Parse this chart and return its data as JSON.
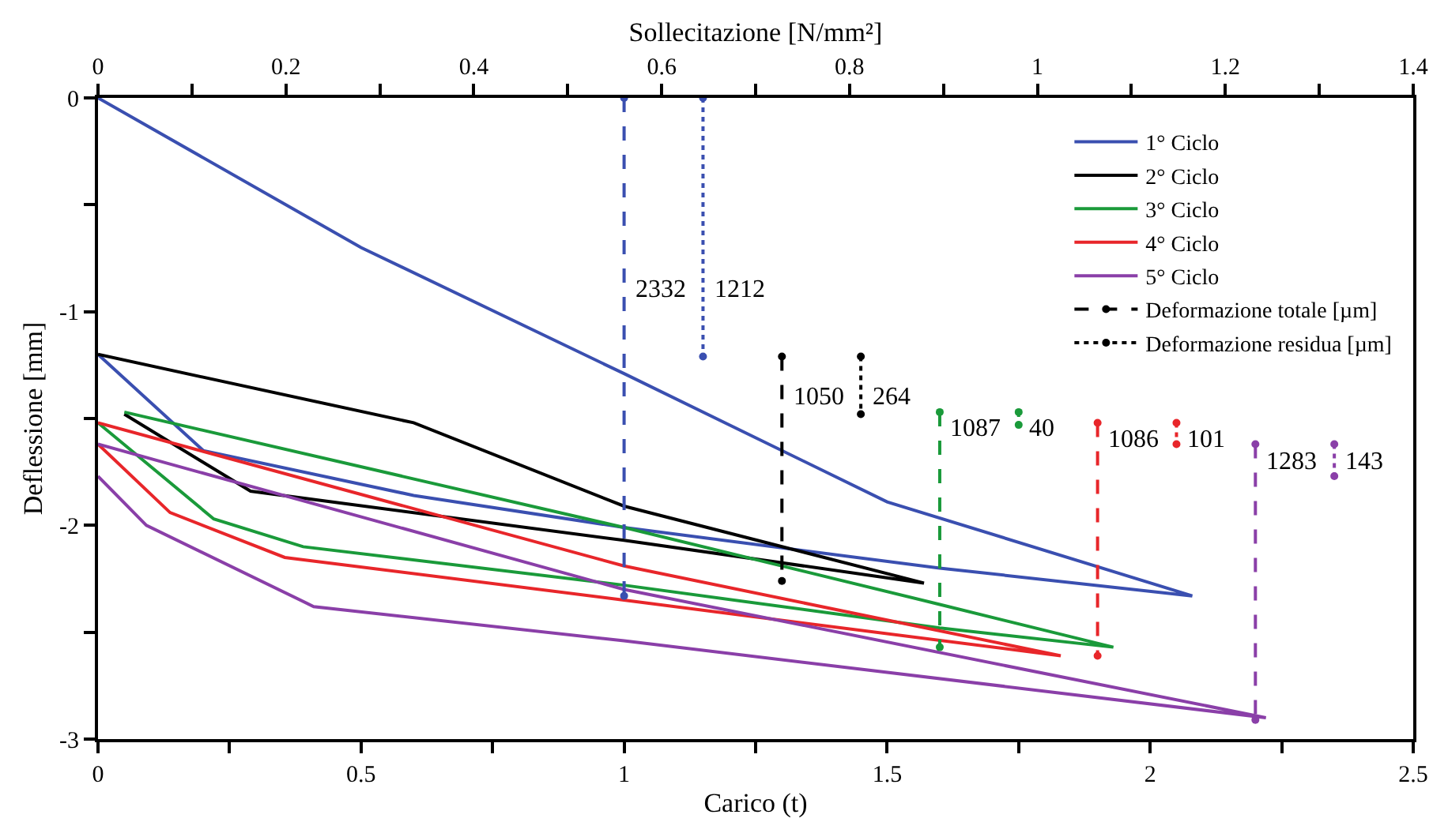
{
  "chart_data": {
    "type": "line",
    "xlabel": "Carico (t)",
    "ylabel": "Deflessione [mm]",
    "x2label": "Sollecitazione [N/mm²]",
    "xlim": [
      0,
      2.5
    ],
    "xticks": [
      0,
      {
        "value": 0.25,
        "label": null
      },
      0.5,
      {
        "value": 0.75,
        "label": null
      },
      1,
      {
        "value": 1.25,
        "label": null
      },
      1.5,
      {
        "value": 1.75,
        "label": null
      },
      2,
      {
        "value": 2.25,
        "label": null
      },
      2.5
    ],
    "x2lim": [
      0,
      1.4
    ],
    "x2ticks": [
      0,
      {
        "value": 0.1,
        "label": null
      },
      0.2,
      {
        "value": 0.3,
        "label": null
      },
      0.4,
      {
        "value": 0.5,
        "label": null
      },
      0.6,
      {
        "value": 0.7,
        "label": null
      },
      0.8,
      {
        "value": 0.9,
        "label": null
      },
      1,
      {
        "value": 1.1,
        "label": null
      },
      1.2,
      {
        "value": 1.3,
        "label": null
      },
      1.4
    ],
    "ylim": [
      -3,
      0
    ],
    "yticks": [
      -3,
      {
        "value": -2.5,
        "label": null
      },
      -2,
      {
        "value": -1.5,
        "label": null
      },
      -1,
      {
        "value": -0.5,
        "label": null
      },
      0
    ],
    "legend": "top right",
    "marker": "none",
    "line_style": "solid",
    "series": [
      {
        "name": "1° Ciclo",
        "color": "#3a4fb0",
        "x": [
          0,
          0.5,
          1.0,
          1.5,
          2.08,
          1.6,
          1.0,
          0.6,
          0.2,
          0
        ],
        "values": [
          0,
          -0.7,
          -1.29,
          -1.89,
          -2.33,
          -2.2,
          -2.01,
          -1.86,
          -1.65,
          -1.2
        ]
      },
      {
        "name": "2° Ciclo",
        "color": "#000000",
        "x": [
          0,
          0.6,
          1.0,
          1.57,
          1.0,
          0.29,
          0.05
        ],
        "values": [
          -1.2,
          -1.52,
          -1.91,
          -2.27,
          -2.07,
          -1.84,
          -1.48
        ]
      },
      {
        "name": "3° Ciclo",
        "color": "#1a9a3a",
        "x": [
          0.05,
          1.0,
          1.6,
          1.93,
          1.6,
          1.0,
          0.39,
          0.22,
          0
        ],
        "values": [
          -1.47,
          -2.01,
          -2.37,
          -2.57,
          -2.48,
          -2.28,
          -2.1,
          -1.97,
          -1.52
        ]
      },
      {
        "name": "4° Ciclo",
        "color": "#e8262a",
        "x": [
          0,
          1.0,
          1.83,
          1.0,
          0.355,
          0.137,
          0
        ],
        "values": [
          -1.52,
          -2.19,
          -2.61,
          -2.35,
          -2.15,
          -1.94,
          -1.62
        ]
      },
      {
        "name": "5° Ciclo",
        "color": "#8a3fa8",
        "x": [
          0,
          1.0,
          2.22,
          1.0,
          0.41,
          0.092,
          0
        ],
        "values": [
          -1.62,
          -2.3,
          -2.9,
          -2.54,
          -2.38,
          -2.0,
          -1.77
        ]
      },
      {
        "name": "Deformazione totale [µm]",
        "color": "#000000",
        "line_style": "dashed",
        "marker": "circle",
        "x": [
          1.3,
          1.3
        ],
        "values": [
          -1.21,
          -2.26
        ]
      },
      {
        "name": "Deformazione residua [µm]",
        "color": "#000000",
        "line_style": "dotted",
        "marker": "circle",
        "x": [
          1.45,
          1.45
        ],
        "values": [
          -1.21,
          -1.48
        ]
      },
      {
        "color": "#3a4fb0",
        "line_style": "dashed",
        "marker": "circle",
        "x": [
          1.0,
          1.0
        ],
        "values": [
          0,
          -2.33
        ]
      },
      {
        "color": "#3a4fb0",
        "line_style": "dotted",
        "marker": "circle",
        "x": [
          1.15,
          1.15
        ],
        "values": [
          0,
          -1.21
        ]
      },
      {
        "color": "#1a9a3a",
        "line_style": "dashed",
        "marker": "circle",
        "x": [
          1.6,
          1.6
        ],
        "values": [
          -1.47,
          -2.57
        ]
      },
      {
        "color": "#1a9a3a",
        "line_style": "dotted",
        "marker": "circle",
        "x": [
          1.75,
          1.75
        ],
        "values": [
          -1.47,
          -1.53
        ]
      },
      {
        "color": "#e8262a",
        "line_style": "dashed",
        "marker": "circle",
        "x": [
          1.9,
          1.9
        ],
        "values": [
          -1.52,
          -2.61
        ]
      },
      {
        "color": "#e8262a",
        "line_style": "dotted",
        "marker": "circle",
        "x": [
          2.05,
          2.05
        ],
        "values": [
          -1.52,
          -1.62
        ]
      },
      {
        "color": "#8a3fa8",
        "line_style": "dashed",
        "marker": "circle",
        "x": [
          2.2,
          2.2
        ],
        "values": [
          -1.62,
          -2.91
        ]
      },
      {
        "color": "#8a3fa8",
        "line_style": "dotted",
        "marker": "circle",
        "x": [
          2.35,
          2.35
        ],
        "values": [
          -1.62,
          -1.77
        ]
      }
    ],
    "annotations": [
      {
        "text": "2332",
        "x": 1.0,
        "y": -0.9
      },
      {
        "text": "1212",
        "x": 1.15,
        "y": -0.9
      },
      {
        "text": "1050",
        "x": 1.3,
        "y": -1.4
      },
      {
        "text": "264",
        "x": 1.45,
        "y": -1.4
      },
      {
        "text": "1087",
        "x": 1.6,
        "y": -1.55
      },
      {
        "text": "40",
        "x": 1.75,
        "y": -1.55
      },
      {
        "text": "1086",
        "x": 1.9,
        "y": -1.6
      },
      {
        "text": "101",
        "x": 2.05,
        "y": -1.6
      },
      {
        "text": "1283",
        "x": 2.2,
        "y": -1.7
      },
      {
        "text": "143",
        "x": 2.35,
        "y": -1.7
      }
    ]
  }
}
